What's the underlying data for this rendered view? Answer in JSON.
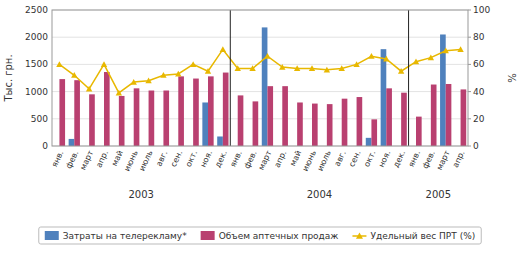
{
  "chart_data": {
    "type": "bar",
    "categories": [
      "янв.",
      "фев.",
      "март",
      "апр.",
      "май",
      "июнь",
      "июль",
      "авг.",
      "сен.",
      "окт.",
      "ноя.",
      "дек.",
      "янв.",
      "фев.",
      "март",
      "апр.",
      "май",
      "июнь",
      "июль",
      "авг.",
      "сен.",
      "окт.",
      "ноя.",
      "дек.",
      "янв.",
      "фев.",
      "март",
      "апр."
    ],
    "series": [
      {
        "name": "Затраты на телерекламу*",
        "type": "bar",
        "color": "#4f81bd",
        "values": [
          0,
          130,
          0,
          0,
          0,
          0,
          0,
          0,
          0,
          0,
          800,
          175,
          0,
          0,
          2180,
          0,
          0,
          0,
          0,
          0,
          0,
          150,
          1780,
          0,
          0,
          0,
          2050,
          0
        ]
      },
      {
        "name": "Объем аптечных продаж",
        "type": "bar",
        "color": "#b94070",
        "values": [
          1230,
          1210,
          950,
          1360,
          920,
          1060,
          1020,
          1020,
          1280,
          1240,
          1280,
          1350,
          930,
          820,
          1100,
          1100,
          800,
          780,
          770,
          870,
          900,
          490,
          1060,
          980,
          540,
          1130,
          1140,
          1040
        ]
      },
      {
        "name": "Удельный вес ПРТ (%)",
        "type": "line",
        "axis": "y2",
        "color": "#e8b800",
        "marker": "triangle",
        "values": [
          60,
          52,
          42,
          60,
          39,
          47,
          48,
          52,
          53,
          60,
          55,
          71,
          57,
          57,
          66,
          58,
          57,
          57,
          56,
          57,
          60,
          66,
          64,
          55,
          62,
          65,
          70,
          71
        ]
      }
    ],
    "annotations": [
      "2003",
      "2004",
      "2005"
    ],
    "ylabel": "Тыс. грн.",
    "y2label": "%",
    "ylim": [
      0,
      2500
    ],
    "yticks": [
      0,
      500,
      1000,
      1500,
      2000,
      2500
    ],
    "y2lim": [
      0,
      100
    ],
    "y2ticks": [
      0,
      20,
      40,
      60,
      80,
      100
    ],
    "grid": true,
    "legend": "bottom"
  }
}
